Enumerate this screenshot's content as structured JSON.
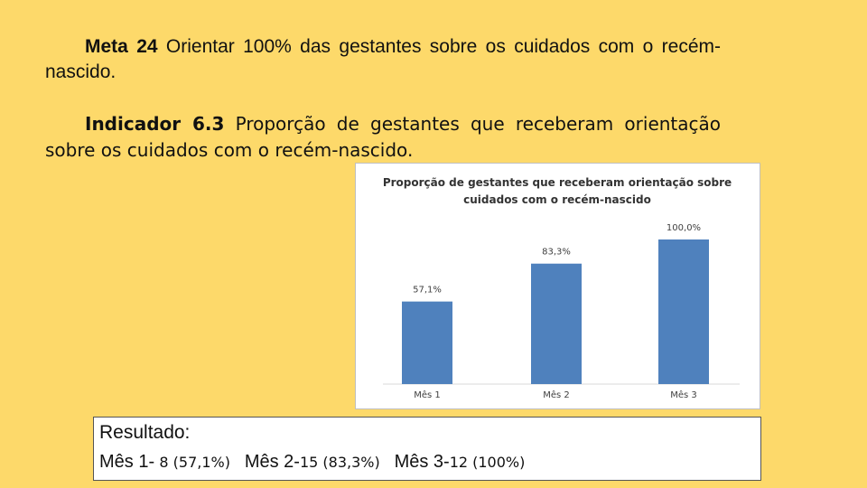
{
  "meta": {
    "label": "Meta 24",
    "text": "Orientar 100% das gestantes sobre os cuidados com o recém-nascido."
  },
  "indicador": {
    "label": "Indicador 6.3",
    "text": "Proporção de gestantes que receberam orientação sobre os cuidados com o recém-nascido."
  },
  "chart_data": {
    "type": "bar",
    "title_lines": [
      "Proporção de gestantes que receberam orientação sobre",
      "cuidados com o recém-nascido"
    ],
    "categories": [
      "Mês 1",
      "Mês 2",
      "Mês 3"
    ],
    "values": [
      57.1,
      83.3,
      100.0
    ],
    "data_labels": [
      "57,1%",
      "83,3%",
      "100,0%"
    ],
    "ylim": [
      0,
      100
    ],
    "grid": false,
    "legend": "none",
    "bar_color": "#4F81BD"
  },
  "resultado": {
    "title": "Resultado:",
    "items": [
      {
        "label": "Mês 1-",
        "value": "8 (57,1%)"
      },
      {
        "label": "Mês 2-",
        "value": "15 (83,3%)"
      },
      {
        "label": "Mês 3-",
        "value": "12 (100%)"
      }
    ]
  }
}
